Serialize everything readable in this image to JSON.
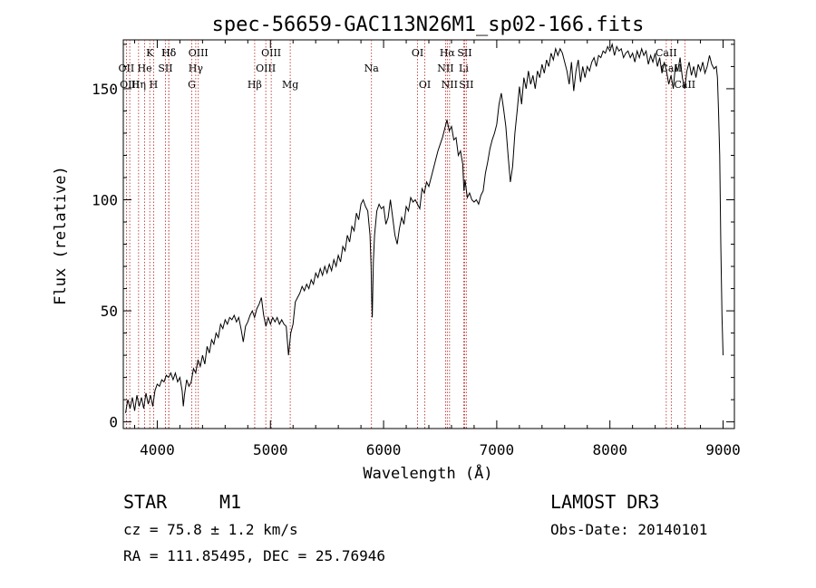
{
  "chart_data": {
    "type": "line",
    "title": "spec-56659-GAC113N26M1_sp02-166.fits",
    "xlabel": "Wavelength (Å)",
    "ylabel": "Flux (relative)",
    "xlim": [
      3700,
      9100
    ],
    "ylim": [
      -3,
      172
    ],
    "xticks": [
      4000,
      5000,
      6000,
      7000,
      8000,
      9000
    ],
    "yticks": [
      0,
      50,
      100,
      150
    ],
    "grid": false,
    "series": [
      {
        "name": "spectrum",
        "points": [
          [
            3720,
            4
          ],
          [
            3740,
            10
          ],
          [
            3760,
            6
          ],
          [
            3780,
            11
          ],
          [
            3800,
            5
          ],
          [
            3820,
            12
          ],
          [
            3840,
            7
          ],
          [
            3860,
            11
          ],
          [
            3880,
            6
          ],
          [
            3900,
            13
          ],
          [
            3920,
            8
          ],
          [
            3940,
            12
          ],
          [
            3960,
            7
          ],
          [
            3980,
            14
          ],
          [
            4000,
            17
          ],
          [
            4020,
            16
          ],
          [
            4040,
            19
          ],
          [
            4060,
            18
          ],
          [
            4080,
            21
          ],
          [
            4100,
            20
          ],
          [
            4120,
            22
          ],
          [
            4140,
            19
          ],
          [
            4160,
            22
          ],
          [
            4180,
            18
          ],
          [
            4200,
            20
          ],
          [
            4220,
            14
          ],
          [
            4230,
            7
          ],
          [
            4240,
            12
          ],
          [
            4260,
            19
          ],
          [
            4280,
            16
          ],
          [
            4300,
            18
          ],
          [
            4320,
            24
          ],
          [
            4340,
            22
          ],
          [
            4360,
            28
          ],
          [
            4380,
            25
          ],
          [
            4400,
            30
          ],
          [
            4420,
            26
          ],
          [
            4440,
            34
          ],
          [
            4460,
            31
          ],
          [
            4480,
            37
          ],
          [
            4500,
            35
          ],
          [
            4520,
            40
          ],
          [
            4540,
            38
          ],
          [
            4560,
            44
          ],
          [
            4580,
            42
          ],
          [
            4600,
            46
          ],
          [
            4620,
            44
          ],
          [
            4640,
            47
          ],
          [
            4660,
            46
          ],
          [
            4680,
            48
          ],
          [
            4700,
            45
          ],
          [
            4720,
            47
          ],
          [
            4740,
            42
          ],
          [
            4760,
            36
          ],
          [
            4780,
            43
          ],
          [
            4800,
            45
          ],
          [
            4820,
            48
          ],
          [
            4840,
            50
          ],
          [
            4860,
            47
          ],
          [
            4880,
            51
          ],
          [
            4900,
            53
          ],
          [
            4920,
            56
          ],
          [
            4940,
            48
          ],
          [
            4960,
            43
          ],
          [
            4980,
            47
          ],
          [
            5000,
            44
          ],
          [
            5020,
            47
          ],
          [
            5040,
            45
          ],
          [
            5060,
            47
          ],
          [
            5080,
            44
          ],
          [
            5100,
            46
          ],
          [
            5120,
            44
          ],
          [
            5140,
            43
          ],
          [
            5160,
            30
          ],
          [
            5180,
            40
          ],
          [
            5200,
            44
          ],
          [
            5220,
            54
          ],
          [
            5240,
            56
          ],
          [
            5260,
            58
          ],
          [
            5280,
            61
          ],
          [
            5300,
            59
          ],
          [
            5320,
            62
          ],
          [
            5340,
            60
          ],
          [
            5360,
            64
          ],
          [
            5380,
            62
          ],
          [
            5400,
            67
          ],
          [
            5420,
            65
          ],
          [
            5440,
            69
          ],
          [
            5460,
            66
          ],
          [
            5480,
            70
          ],
          [
            5500,
            67
          ],
          [
            5520,
            71
          ],
          [
            5540,
            68
          ],
          [
            5560,
            73
          ],
          [
            5580,
            70
          ],
          [
            5600,
            75
          ],
          [
            5620,
            72
          ],
          [
            5640,
            79
          ],
          [
            5660,
            77
          ],
          [
            5680,
            84
          ],
          [
            5700,
            81
          ],
          [
            5720,
            88
          ],
          [
            5740,
            86
          ],
          [
            5760,
            94
          ],
          [
            5780,
            91
          ],
          [
            5800,
            98
          ],
          [
            5820,
            100
          ],
          [
            5840,
            97
          ],
          [
            5860,
            95
          ],
          [
            5880,
            84
          ],
          [
            5890,
            70
          ],
          [
            5895,
            55
          ],
          [
            5900,
            47
          ],
          [
            5905,
            60
          ],
          [
            5910,
            72
          ],
          [
            5920,
            84
          ],
          [
            5940,
            95
          ],
          [
            5960,
            98
          ],
          [
            5980,
            96
          ],
          [
            6000,
            97
          ],
          [
            6020,
            89
          ],
          [
            6040,
            92
          ],
          [
            6060,
            100
          ],
          [
            6080,
            92
          ],
          [
            6100,
            84
          ],
          [
            6120,
            80
          ],
          [
            6140,
            87
          ],
          [
            6160,
            92
          ],
          [
            6180,
            89
          ],
          [
            6200,
            97
          ],
          [
            6220,
            95
          ],
          [
            6240,
            101
          ],
          [
            6260,
            99
          ],
          [
            6280,
            100
          ],
          [
            6300,
            98
          ],
          [
            6320,
            96
          ],
          [
            6340,
            105
          ],
          [
            6360,
            103
          ],
          [
            6380,
            108
          ],
          [
            6400,
            106
          ],
          [
            6420,
            110
          ],
          [
            6440,
            114
          ],
          [
            6460,
            118
          ],
          [
            6480,
            122
          ],
          [
            6500,
            125
          ],
          [
            6520,
            128
          ],
          [
            6540,
            132
          ],
          [
            6560,
            136
          ],
          [
            6580,
            131
          ],
          [
            6600,
            133
          ],
          [
            6620,
            127
          ],
          [
            6640,
            128
          ],
          [
            6660,
            120
          ],
          [
            6680,
            122
          ],
          [
            6700,
            116
          ],
          [
            6710,
            104
          ],
          [
            6720,
            109
          ],
          [
            6740,
            101
          ],
          [
            6760,
            103
          ],
          [
            6780,
            100
          ],
          [
            6800,
            99
          ],
          [
            6820,
            100
          ],
          [
            6840,
            98
          ],
          [
            6860,
            102
          ],
          [
            6880,
            104
          ],
          [
            6900,
            112
          ],
          [
            6920,
            117
          ],
          [
            6940,
            123
          ],
          [
            6960,
            127
          ],
          [
            6980,
            130
          ],
          [
            7000,
            134
          ],
          [
            7020,
            143
          ],
          [
            7040,
            148
          ],
          [
            7060,
            141
          ],
          [
            7080,
            133
          ],
          [
            7100,
            120
          ],
          [
            7120,
            108
          ],
          [
            7140,
            115
          ],
          [
            7160,
            130
          ],
          [
            7180,
            140
          ],
          [
            7200,
            151
          ],
          [
            7220,
            143
          ],
          [
            7240,
            155
          ],
          [
            7260,
            150
          ],
          [
            7280,
            158
          ],
          [
            7300,
            152
          ],
          [
            7320,
            156
          ],
          [
            7340,
            150
          ],
          [
            7360,
            158
          ],
          [
            7380,
            155
          ],
          [
            7400,
            161
          ],
          [
            7420,
            157
          ],
          [
            7440,
            163
          ],
          [
            7460,
            160
          ],
          [
            7480,
            166
          ],
          [
            7500,
            163
          ],
          [
            7520,
            168
          ],
          [
            7540,
            165
          ],
          [
            7560,
            168
          ],
          [
            7580,
            166
          ],
          [
            7600,
            162
          ],
          [
            7620,
            158
          ],
          [
            7640,
            152
          ],
          [
            7660,
            162
          ],
          [
            7680,
            149
          ],
          [
            7700,
            158
          ],
          [
            7720,
            163
          ],
          [
            7740,
            153
          ],
          [
            7760,
            160
          ],
          [
            7780,
            155
          ],
          [
            7800,
            160
          ],
          [
            7820,
            158
          ],
          [
            7840,
            162
          ],
          [
            7860,
            164
          ],
          [
            7880,
            160
          ],
          [
            7900,
            165
          ],
          [
            7920,
            164
          ],
          [
            7940,
            167
          ],
          [
            7960,
            166
          ],
          [
            7980,
            169
          ],
          [
            8000,
            167
          ],
          [
            8020,
            170
          ],
          [
            8040,
            165
          ],
          [
            8060,
            169
          ],
          [
            8080,
            167
          ],
          [
            8100,
            168
          ],
          [
            8120,
            164
          ],
          [
            8140,
            166
          ],
          [
            8160,
            167
          ],
          [
            8180,
            164
          ],
          [
            8200,
            166
          ],
          [
            8220,
            162
          ],
          [
            8240,
            167
          ],
          [
            8260,
            164
          ],
          [
            8280,
            168
          ],
          [
            8300,
            165
          ],
          [
            8320,
            167
          ],
          [
            8340,
            161
          ],
          [
            8360,
            165
          ],
          [
            8380,
            162
          ],
          [
            8400,
            166
          ],
          [
            8420,
            160
          ],
          [
            8440,
            164
          ],
          [
            8460,
            157
          ],
          [
            8480,
            162
          ],
          [
            8500,
            158
          ],
          [
            8520,
            152
          ],
          [
            8540,
            156
          ],
          [
            8560,
            150
          ],
          [
            8580,
            161
          ],
          [
            8600,
            158
          ],
          [
            8620,
            164
          ],
          [
            8640,
            155
          ],
          [
            8660,
            150
          ],
          [
            8680,
            158
          ],
          [
            8700,
            162
          ],
          [
            8720,
            156
          ],
          [
            8740,
            160
          ],
          [
            8760,
            155
          ],
          [
            8780,
            161
          ],
          [
            8800,
            158
          ],
          [
            8820,
            162
          ],
          [
            8840,
            157
          ],
          [
            8860,
            160
          ],
          [
            8880,
            165
          ],
          [
            8900,
            161
          ],
          [
            8920,
            159
          ],
          [
            8940,
            160
          ],
          [
            8950,
            155
          ],
          [
            8960,
            140
          ],
          [
            8970,
            120
          ],
          [
            8980,
            80
          ],
          [
            8990,
            48
          ],
          [
            9000,
            30
          ]
        ]
      }
    ],
    "line_markers": [
      {
        "label": "Hδ",
        "wavelength": 4102,
        "row": 1
      },
      {
        "label": "OII",
        "wavelength": 3727,
        "row": 2
      },
      {
        "label": "OIII",
        "wavelength": 3757,
        "row": 3
      },
      {
        "label": "K",
        "wavelength": 3934,
        "row": 1
      },
      {
        "label": "He",
        "wavelength": 3889,
        "row": 2
      },
      {
        "label": "Hη",
        "wavelength": 3835,
        "row": 3
      },
      {
        "label": "SII",
        "wavelength": 4072,
        "row": 2
      },
      {
        "label": "H",
        "wavelength": 3968,
        "row": 3
      },
      {
        "label": "Hδ",
        "wavelength": 4102,
        "row": 1
      },
      {
        "label": "OIII",
        "wavelength": 4363,
        "row": 1
      },
      {
        "label": "Hγ",
        "wavelength": 4340,
        "row": 2
      },
      {
        "label": "G",
        "wavelength": 4305,
        "row": 3
      },
      {
        "label": "OIII",
        "wavelength": 5007,
        "row": 1
      },
      {
        "label": "OIII",
        "wavelength": 4959,
        "row": 2
      },
      {
        "label": "Hβ",
        "wavelength": 4861,
        "row": 3
      },
      {
        "label": "Mg",
        "wavelength": 5175,
        "row": 3
      },
      {
        "label": "Na",
        "wavelength": 5893,
        "row": 2
      },
      {
        "label": "OI",
        "wavelength": 6300,
        "row": 1
      },
      {
        "label": "OI",
        "wavelength": 6364,
        "row": 3
      },
      {
        "label": "Hα",
        "wavelength": 6563,
        "row": 1
      },
      {
        "label": "SII",
        "wavelength": 6716,
        "row": 1
      },
      {
        "label": "NII",
        "wavelength": 6548,
        "row": 2
      },
      {
        "label": "Li",
        "wavelength": 6708,
        "row": 2
      },
      {
        "label": "NII",
        "wavelength": 6583,
        "row": 3
      },
      {
        "label": "SII",
        "wavelength": 6731,
        "row": 3
      },
      {
        "label": "CaII",
        "wavelength": 8498,
        "row": 1
      },
      {
        "label": "CaII",
        "wavelength": 8542,
        "row": 2
      },
      {
        "label": "CaII",
        "wavelength": 8662,
        "row": 3
      }
    ]
  },
  "info": {
    "object_class": "STAR",
    "subclass": "M1",
    "survey": "LAMOST DR3",
    "redshift_text": "cz = 75.8 ± 1.2 km/s",
    "obs_date": "Obs-Date: 20140101",
    "coords": "RA = 111.85495, DEC =  25.76946"
  },
  "colors": {
    "line": "#000000",
    "marker": "#b22222",
    "axis": "#000000"
  }
}
